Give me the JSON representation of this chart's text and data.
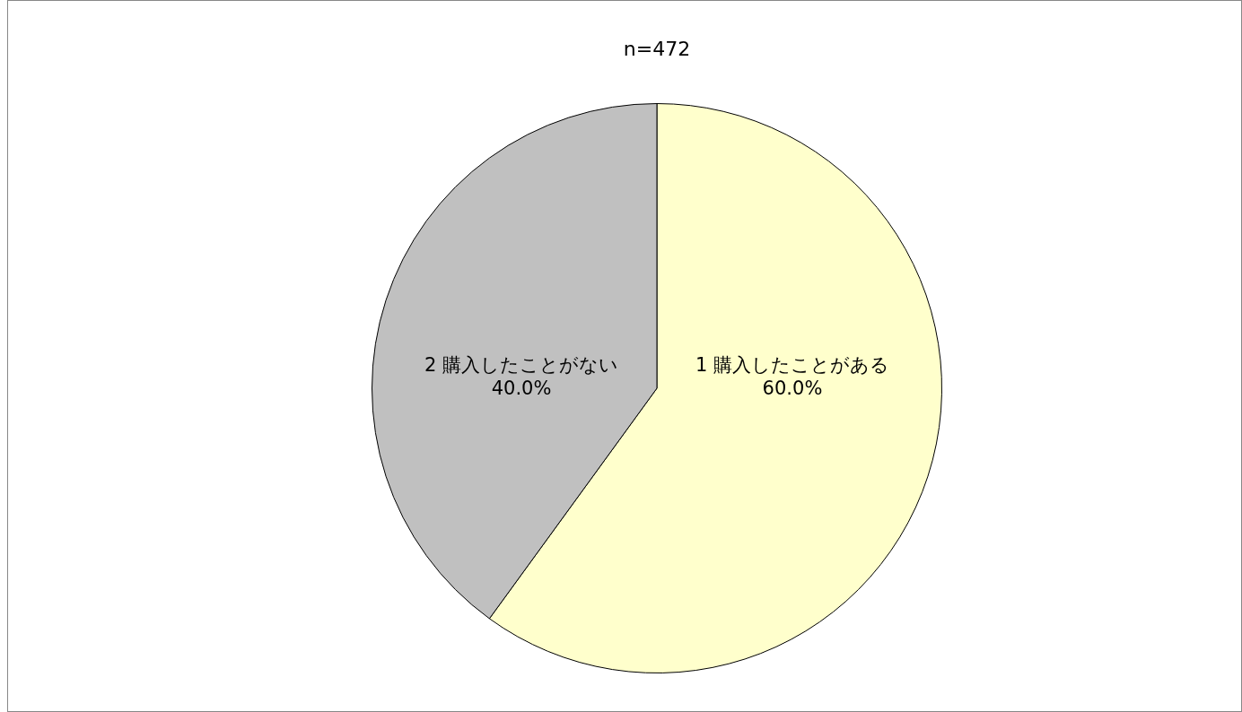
{
  "chart_data": {
    "type": "pie",
    "title": "n=472",
    "categories": [
      "1 購入したことがある",
      "2 購入したことがない"
    ],
    "values": [
      60.0,
      40.0
    ],
    "colors": [
      "#ffffcc",
      "#c0c0c0"
    ],
    "value_labels": [
      "60.0%",
      "40.0%"
    ],
    "legend": false
  }
}
